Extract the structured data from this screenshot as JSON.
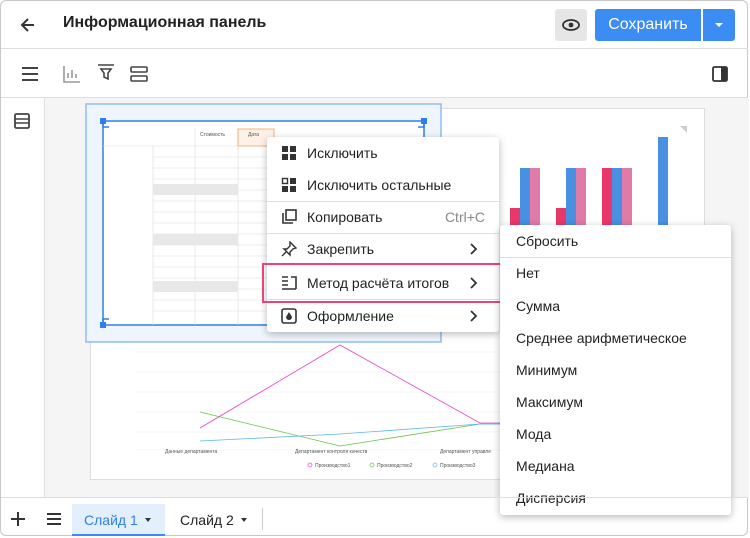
{
  "header": {
    "title": "Информационная панель",
    "save_button": "Сохранить"
  },
  "context_menu": {
    "items": [
      {
        "label": "Исключить"
      },
      {
        "label": "Исключить остальные"
      },
      {
        "label": "Копировать",
        "shortcut": "Ctrl+C"
      },
      {
        "label": "Закрепить"
      },
      {
        "label": "Метод расчёта итогов"
      },
      {
        "label": "Оформление"
      }
    ]
  },
  "submenu": {
    "items": [
      "Сбросить",
      "Нет",
      "Сумма",
      "Среднее арифметическое",
      "Минимум",
      "Максимум",
      "Мода",
      "Медиана",
      "Дисперсия"
    ]
  },
  "thumbnail": {
    "table_headers": [
      "Стоимость",
      "Дата"
    ],
    "legend": [
      "Производство1",
      "Производство2",
      "Производство3"
    ],
    "x_labels": [
      "Данные департамента",
      "Департамент контроля качеств",
      "Департамент управле"
    ]
  },
  "tabs": [
    "Слайд 1",
    "Слайд 2"
  ]
}
